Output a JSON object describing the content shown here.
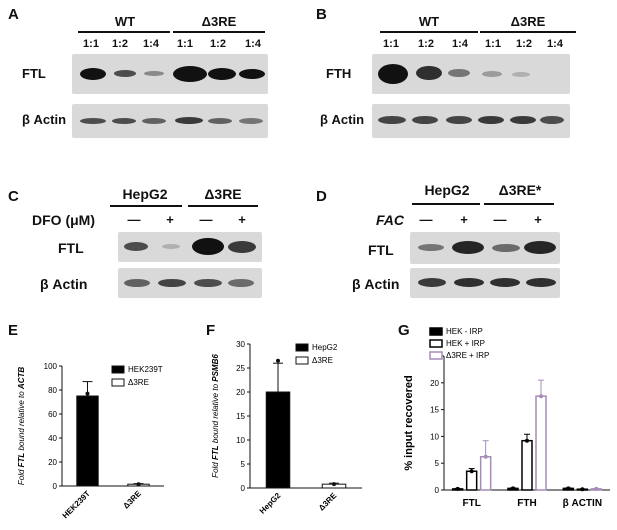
{
  "panels": {
    "A": {
      "label": "A",
      "groups": [
        "WT",
        "Δ3RE"
      ],
      "ratios": [
        "1:1",
        "1:2",
        "1:4",
        "1:1",
        "1:2",
        "1:4"
      ],
      "rows": [
        "FTL",
        "β Actin"
      ]
    },
    "B": {
      "label": "B",
      "groups": [
        "WT",
        "Δ3RE"
      ],
      "ratios": [
        "1:1",
        "1:2",
        "1:4",
        "1:1",
        "1:2",
        "1:4"
      ],
      "rows": [
        "FTH",
        "β Actin"
      ]
    },
    "C": {
      "label": "C",
      "groups": [
        "HepG2",
        "Δ3RE"
      ],
      "treatment": "DFO (μM)",
      "signs": [
        "—",
        "+",
        "—",
        "+"
      ],
      "rows": [
        "FTL",
        "β Actin"
      ]
    },
    "D": {
      "label": "D",
      "groups": [
        "HepG2",
        "Δ3RE*"
      ],
      "treatment": "FAC",
      "signs": [
        "—",
        "+",
        "—",
        "+"
      ],
      "rows": [
        "FTL",
        "β Actin"
      ]
    }
  },
  "chart_data": [
    {
      "panel": "E",
      "type": "bar",
      "categories": [
        "HEK239T",
        "Δ3RE"
      ],
      "values": [
        75,
        1.5
      ],
      "errors": [
        12,
        0.5
      ],
      "points": [
        [
          77
        ],
        [
          1.5
        ]
      ],
      "fills": [
        "#000000",
        "#ffffff"
      ],
      "ylabel_prefix": "Fold ",
      "ylabel_gene": "FTL",
      "ylabel_mid": " bound relative to ",
      "ylabel_ref": "ACTB",
      "ylim": [
        0,
        100
      ],
      "yticks": [
        "0",
        "20",
        "40",
        "60",
        "80",
        "100"
      ],
      "legend": [
        "HEK239T",
        "Δ3RE"
      ]
    },
    {
      "panel": "F",
      "type": "bar",
      "categories": [
        "HepG2",
        "Δ3RE"
      ],
      "values": [
        20,
        0.8
      ],
      "errors": [
        6,
        0.2
      ],
      "points": [
        [
          26.5
        ],
        [
          0.8
        ]
      ],
      "fills": [
        "#000000",
        "#ffffff"
      ],
      "ylabel_prefix": "Fold ",
      "ylabel_gene": "FTL",
      "ylabel_mid": " bound relative to ",
      "ylabel_ref": "PSMB6",
      "ylim": [
        0,
        30
      ],
      "yticks": [
        "0",
        "5",
        "10",
        "15",
        "20",
        "25",
        "30"
      ],
      "legend": [
        "HepG2",
        "Δ3RE"
      ]
    },
    {
      "panel": "G",
      "type": "bar",
      "categories": [
        "FTL",
        "FTH",
        "β ACTIN"
      ],
      "ylabel": "% input recovered",
      "ylim": [
        0,
        25
      ],
      "yticks": [
        "0",
        "5",
        "10",
        "15",
        "20",
        "25"
      ],
      "series": [
        {
          "name": "HEK - IRP",
          "values": [
            0.2,
            0.3,
            0.3
          ],
          "errors": [
            0.1,
            0.1,
            0.1
          ],
          "color": "#000000",
          "fill": "#000000"
        },
        {
          "name": "HEK + IRP",
          "values": [
            3.5,
            9.2,
            0.15
          ],
          "errors": [
            0.5,
            1.2,
            0.05
          ],
          "color": "#000000",
          "fill": "#ffffff"
        },
        {
          "name": "Δ3RE + IRP",
          "values": [
            6.2,
            17.5,
            0.2
          ],
          "errors": [
            3.0,
            3.0,
            0.1
          ],
          "color": "#a68cb8",
          "fill": "#ffffff"
        }
      ],
      "legend": [
        "HEK - IRP",
        "HEK + IRP",
        "Δ3RE + IRP"
      ]
    }
  ]
}
